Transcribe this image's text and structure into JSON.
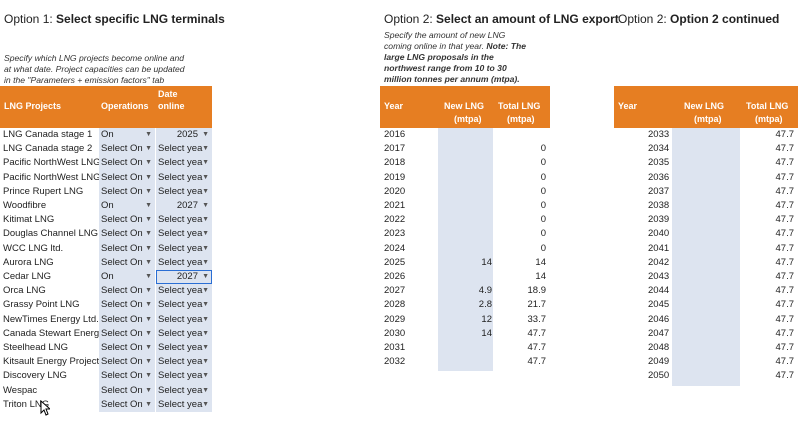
{
  "option1": {
    "prefix": "Option 1:",
    "title": "Select specific LNG terminals",
    "desc_lines": [
      "Specify which LNG projects become online and",
      "at what date. Project capacities can be updated",
      "in the \"Parameters + emission factors\" tab"
    ],
    "headers": {
      "project": "LNG Projects",
      "operations": "Operations",
      "date1": "Date",
      "date2": "online"
    },
    "rows": [
      {
        "name": "LNG Canada stage 1",
        "ops": "On",
        "date": "2025"
      },
      {
        "name": "LNG Canada stage 2",
        "ops": "Select On",
        "date": "Select yea"
      },
      {
        "name": "Pacific NorthWest LNG",
        "ops": "Select On",
        "date": "Select yea"
      },
      {
        "name": "Pacific NorthWest LNG",
        "ops": "Select On",
        "date": "Select yea"
      },
      {
        "name": "Prince Rupert LNG",
        "ops": "Select On",
        "date": "Select yea"
      },
      {
        "name": "Woodfibre",
        "ops": "On",
        "date": "2027"
      },
      {
        "name": "Kitimat LNG",
        "ops": "Select On",
        "date": "Select yea"
      },
      {
        "name": "Douglas Channel LNG",
        "ops": "Select On",
        "date": "Select yea"
      },
      {
        "name": "WCC LNG ltd.",
        "ops": "Select On",
        "date": "Select yea"
      },
      {
        "name": "Aurora LNG",
        "ops": "Select On",
        "date": "Select yea"
      },
      {
        "name": "Cedar LNG",
        "ops": "On",
        "date": "2027"
      },
      {
        "name": "Orca LNG",
        "ops": "Select On",
        "date": "Select yea"
      },
      {
        "name": "Grassy Point LNG",
        "ops": "Select On",
        "date": "Select yea"
      },
      {
        "name": "NewTimes Energy Ltd.",
        "ops": "Select On",
        "date": "Select yea"
      },
      {
        "name": "Canada Stewart Energy",
        "ops": "Select On",
        "date": "Select yea"
      },
      {
        "name": "Steelhead LNG",
        "ops": "Select On",
        "date": "Select yea"
      },
      {
        "name": "Kitsault Energy Project",
        "ops": "Select On",
        "date": "Select yea"
      },
      {
        "name": "Discovery LNG",
        "ops": "Select On",
        "date": "Select yea"
      },
      {
        "name": "Wespac",
        "ops": "Select On",
        "date": "Select yea"
      },
      {
        "name": "Triton LNG",
        "ops": "Select On",
        "date": "Select yea"
      }
    ]
  },
  "option2": {
    "prefix": "Option 2:",
    "title": "Select an amount of LNG export",
    "desc_lines": [
      "Specify the amount of new LNG",
      "coming online in that year."
    ],
    "note_inline": "Note: The",
    "note_lines": [
      "large LNG proposals in the",
      "northwest range from 10 to 30",
      "million tonnes per annum (mtpa)."
    ],
    "headers": {
      "year": "Year",
      "new1": "New LNG",
      "new2": "(mtpa)",
      "total1": "Total LNG",
      "total2": "(mtpa)"
    },
    "rows": [
      {
        "year": "2016",
        "new": "",
        "total": ""
      },
      {
        "year": "2017",
        "new": "",
        "total": "0"
      },
      {
        "year": "2018",
        "new": "",
        "total": "0"
      },
      {
        "year": "2019",
        "new": "",
        "total": "0"
      },
      {
        "year": "2020",
        "new": "",
        "total": "0"
      },
      {
        "year": "2021",
        "new": "",
        "total": "0"
      },
      {
        "year": "2022",
        "new": "",
        "total": "0"
      },
      {
        "year": "2023",
        "new": "",
        "total": "0"
      },
      {
        "year": "2024",
        "new": "",
        "total": "0"
      },
      {
        "year": "2025",
        "new": "14",
        "total": "14"
      },
      {
        "year": "2026",
        "new": "",
        "total": "14"
      },
      {
        "year": "2027",
        "new": "4.9",
        "total": "18.9"
      },
      {
        "year": "2028",
        "new": "2.8",
        "total": "21.7"
      },
      {
        "year": "2029",
        "new": "12",
        "total": "33.7"
      },
      {
        "year": "2030",
        "new": "14",
        "total": "47.7"
      },
      {
        "year": "2031",
        "new": "",
        "total": "47.7"
      },
      {
        "year": "2032",
        "new": "",
        "total": "47.7"
      }
    ]
  },
  "option2b": {
    "prefix": "Option 2:",
    "title": "Option 2 continued",
    "headers": {
      "year": "Year",
      "new1": "New LNG",
      "new2": "(mtpa)",
      "total1": "Total LNG",
      "total2": "(mtpa)"
    },
    "rows": [
      {
        "year": "2033",
        "total": "47.7"
      },
      {
        "year": "2034",
        "total": "47.7"
      },
      {
        "year": "2035",
        "total": "47.7"
      },
      {
        "year": "2036",
        "total": "47.7"
      },
      {
        "year": "2037",
        "total": "47.7"
      },
      {
        "year": "2038",
        "total": "47.7"
      },
      {
        "year": "2039",
        "total": "47.7"
      },
      {
        "year": "2040",
        "total": "47.7"
      },
      {
        "year": "2041",
        "total": "47.7"
      },
      {
        "year": "2042",
        "total": "47.7"
      },
      {
        "year": "2043",
        "total": "47.7"
      },
      {
        "year": "2044",
        "total": "47.7"
      },
      {
        "year": "2045",
        "total": "47.7"
      },
      {
        "year": "2046",
        "total": "47.7"
      },
      {
        "year": "2047",
        "total": "47.7"
      },
      {
        "year": "2048",
        "total": "47.7"
      },
      {
        "year": "2049",
        "total": "47.7"
      },
      {
        "year": "2050",
        "total": "47.7"
      }
    ]
  },
  "ui": {
    "accent": "#e67e22",
    "input_fill": "#dde4f0",
    "selection": "#2a6ed4",
    "dropdown_icon": "caret-down-icon",
    "cursor_icon": "mouse-pointer-icon"
  }
}
